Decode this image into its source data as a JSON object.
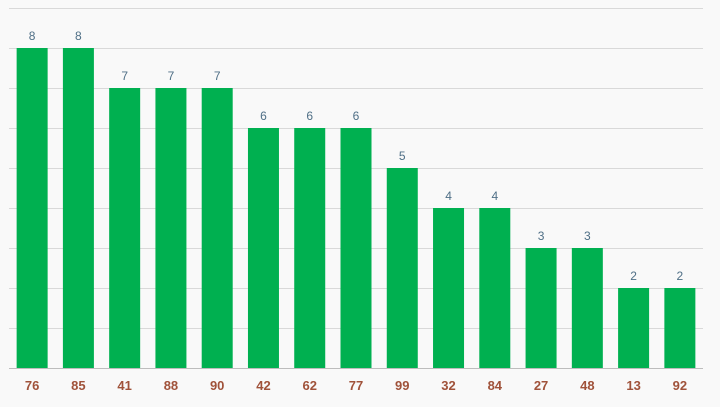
{
  "chart_data": {
    "type": "bar",
    "categories": [
      "76",
      "85",
      "41",
      "88",
      "90",
      "42",
      "62",
      "77",
      "99",
      "32",
      "84",
      "27",
      "48",
      "13",
      "92"
    ],
    "values": [
      8,
      8,
      7,
      7,
      7,
      6,
      6,
      6,
      5,
      4,
      4,
      3,
      3,
      2,
      2
    ],
    "ylim": [
      0,
      9
    ],
    "grid": true,
    "legend": "none",
    "colors": {
      "bar": "#00b050",
      "value_label": "#4f6f86",
      "category_label": "#a0523a",
      "grid": "#d9d9d9"
    }
  }
}
